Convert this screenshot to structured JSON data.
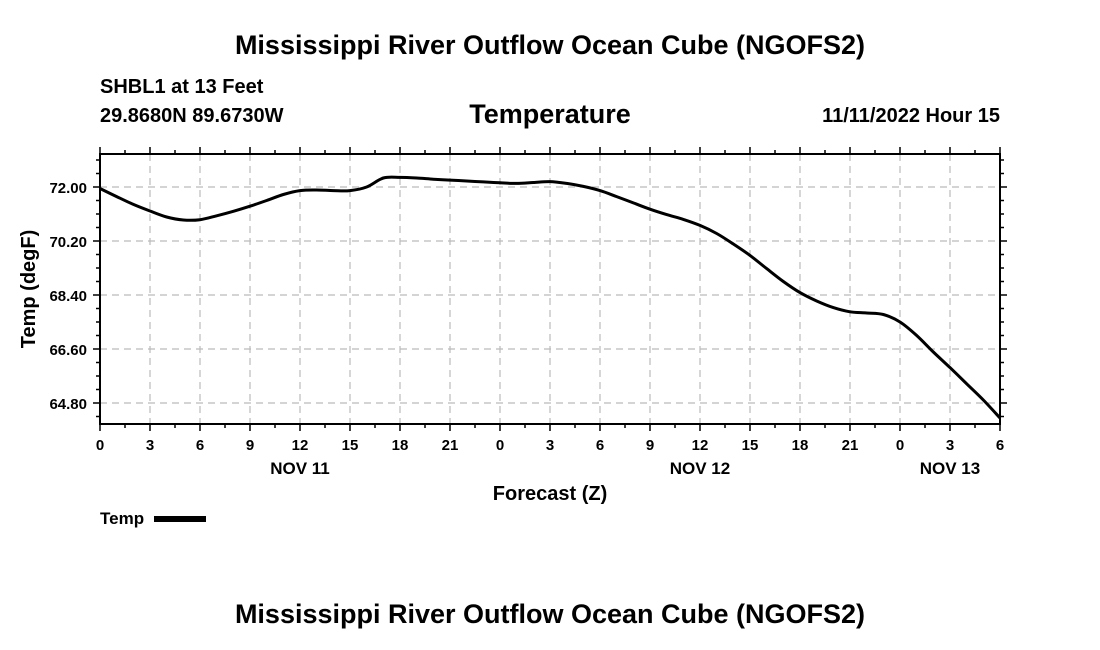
{
  "header": {
    "main_title": "Mississippi River Outflow Ocean Cube (NGOFS2)",
    "station": "SHBL1 at 13 Feet",
    "coords": "29.8680N  89.6730W",
    "subtitle": "Temperature",
    "datetime": "11/11/2022 Hour 15"
  },
  "footer": {
    "title": "Mississippi River Outflow Ocean Cube (NGOFS2)"
  },
  "legend": {
    "label": "Temp",
    "color": "#000000"
  },
  "chart_data": {
    "type": "line",
    "title": "Temperature",
    "xlabel": "Forecast (Z)",
    "ylabel": "Temp (degF)",
    "xlim": [
      0,
      54
    ],
    "ylim": [
      64.1,
      73.1
    ],
    "x_ticks": [
      0,
      3,
      6,
      9,
      12,
      15,
      18,
      21,
      24,
      27,
      30,
      33,
      36,
      39,
      42,
      45,
      48,
      51,
      54
    ],
    "x_tick_labels": [
      "0",
      "3",
      "6",
      "9",
      "12",
      "15",
      "18",
      "21",
      "0",
      "3",
      "6",
      "9",
      "12",
      "15",
      "18",
      "21",
      "0",
      "3",
      "6"
    ],
    "y_ticks": [
      64.8,
      66.6,
      68.4,
      70.2,
      72.0
    ],
    "y_tick_labels": [
      "64.80",
      "66.60",
      "68.40",
      "70.20",
      "72.00"
    ],
    "date_labels": [
      {
        "x": 12,
        "label": "NOV 11"
      },
      {
        "x": 36,
        "label": "NOV 12"
      },
      {
        "x": 51,
        "label": "NOV 13"
      }
    ],
    "grid": true,
    "series": [
      {
        "name": "Temp",
        "x": [
          0,
          1,
          2,
          3,
          4,
          5,
          6,
          7,
          8,
          9,
          10,
          11,
          12,
          13,
          14,
          15,
          16,
          17,
          18,
          19,
          20,
          21,
          22,
          23,
          24,
          25,
          26,
          27,
          28,
          29,
          30,
          31,
          32,
          33,
          34,
          35,
          36,
          37,
          38,
          39,
          40,
          41,
          42,
          43,
          44,
          45,
          46,
          47,
          48,
          49,
          50,
          51,
          52,
          53,
          54
        ],
        "values": [
          71.95,
          71.68,
          71.42,
          71.2,
          71.0,
          70.9,
          70.91,
          71.04,
          71.19,
          71.36,
          71.55,
          71.75,
          71.88,
          71.9,
          71.88,
          71.88,
          72.0,
          72.3,
          72.32,
          72.3,
          72.26,
          72.23,
          72.2,
          72.17,
          72.14,
          72.12,
          72.15,
          72.18,
          72.12,
          72.02,
          71.88,
          71.68,
          71.47,
          71.26,
          71.08,
          70.92,
          70.72,
          70.45,
          70.1,
          69.72,
          69.28,
          68.85,
          68.48,
          68.2,
          67.98,
          67.84,
          67.8,
          67.75,
          67.5,
          67.05,
          66.5,
          65.98,
          65.44,
          64.9,
          64.3
        ]
      }
    ]
  }
}
